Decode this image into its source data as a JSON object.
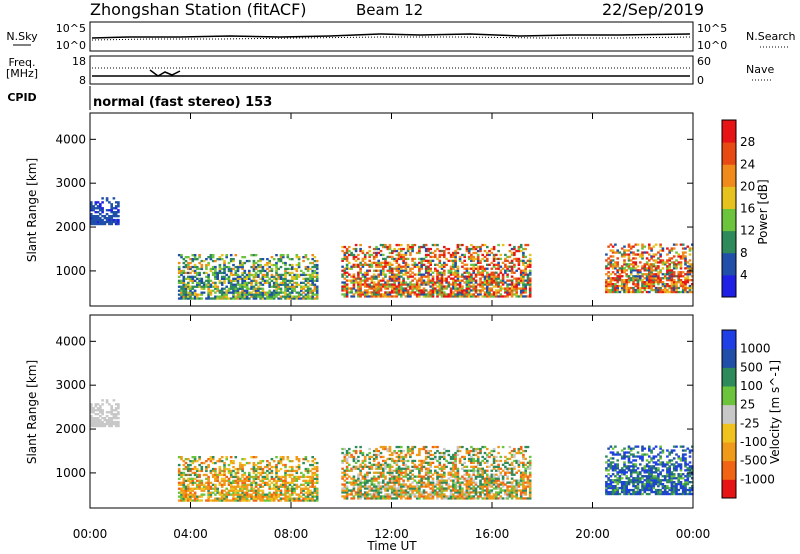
{
  "header": {
    "station": "Zhongshan Station (fitACF)",
    "beam": "Beam 12",
    "date": "22/Sep/2019"
  },
  "top_panels": {
    "nsky_label": "N.Sky",
    "nsky_ticks": [
      "10^5",
      "10^0"
    ],
    "nsearch_label": "N.Search",
    "nsearch_ticks": [
      "10^5",
      "10^0"
    ],
    "freq_label": "Freq.",
    "freq_unit": "[MHz]",
    "freq_ticks": [
      "18",
      "8"
    ],
    "nave_label": "Nave",
    "nave_ticks": [
      "60",
      "0"
    ],
    "cpid_label": "CPID",
    "cpid_value": "normal (fast stereo) 153"
  },
  "colors": {
    "power": [
      "#1f1fe6",
      "#1f4fa8",
      "#2e8a5a",
      "#6cc43c",
      "#e6c21e",
      "#f08a1a",
      "#e84a14",
      "#e61414"
    ],
    "velocity": [
      "#e61414",
      "#f06414",
      "#f09a1a",
      "#f0c21e",
      "#c8c8c8",
      "#6cc43c",
      "#2e8a5a",
      "#1f4fa8",
      "#1f3fe6"
    ]
  },
  "chart_data": [
    {
      "type": "heatmap",
      "title": "Power",
      "ylabel": "Slant Range [km]",
      "yticks": [
        "4000",
        "3000",
        "2000",
        "1000"
      ],
      "ylim": [
        200,
        4600
      ],
      "xlim": [
        0,
        24
      ],
      "colorbar_label": "Power [dB]",
      "colorbar_ticks": [
        "28",
        "24",
        "20",
        "16",
        "12",
        "8",
        "4"
      ],
      "colorbar_range": [
        0,
        32
      ],
      "regions": [
        {
          "t": [
            0.0,
            1.1
          ],
          "r": [
            2050,
            2650
          ],
          "level": "low-weak"
        },
        {
          "t": [
            3.5,
            9.0
          ],
          "r": [
            350,
            1350
          ],
          "level": "mixed-medium"
        },
        {
          "t": [
            10.0,
            17.5
          ],
          "r": [
            400,
            1600
          ],
          "level": "strong-core"
        },
        {
          "t": [
            20.5,
            24.0
          ],
          "r": [
            500,
            1600
          ],
          "level": "strong-core"
        }
      ]
    },
    {
      "type": "heatmap",
      "title": "Velocity",
      "ylabel": "Slant Range [km]",
      "yticks": [
        "4000",
        "3000",
        "2000",
        "1000"
      ],
      "ylim": [
        200,
        4600
      ],
      "xlim": [
        0,
        24
      ],
      "colorbar_label": "Velocity [m s^-1]",
      "colorbar_ticks": [
        "1000",
        "500",
        "100",
        "25",
        "-25",
        "-100",
        "-500",
        "-1000"
      ],
      "regions": [
        {
          "t": [
            0.0,
            1.1
          ],
          "r": [
            2050,
            2650
          ],
          "level": "near-zero"
        },
        {
          "t": [
            3.5,
            9.0
          ],
          "r": [
            350,
            1350
          ],
          "level": "negative"
        },
        {
          "t": [
            10.0,
            17.5
          ],
          "r": [
            400,
            1600
          ],
          "level": "mixed"
        },
        {
          "t": [
            20.5,
            24.0
          ],
          "r": [
            500,
            1600
          ],
          "level": "positive"
        }
      ]
    }
  ],
  "x_axis": {
    "ticks": [
      "00:00",
      "04:00",
      "08:00",
      "12:00",
      "16:00",
      "20:00",
      "00:00"
    ],
    "label": "Time UT"
  }
}
